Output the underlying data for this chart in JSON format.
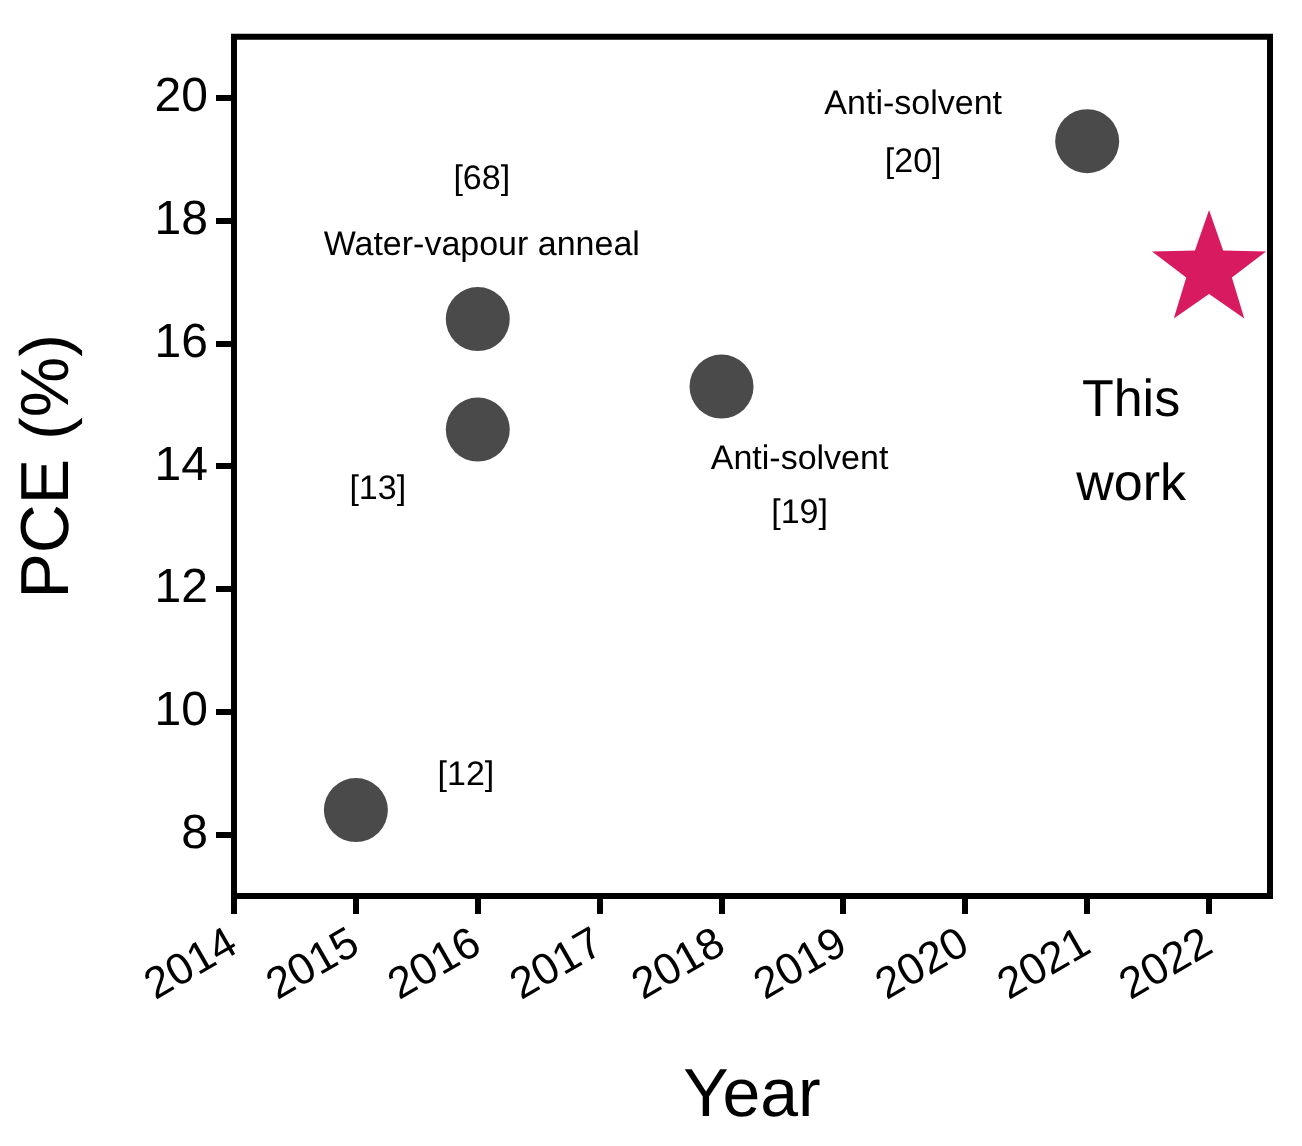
{
  "chart_data": {
    "type": "scatter",
    "xlabel": "Year",
    "ylabel": "PCE (%)",
    "xlim": [
      2014,
      2022.5
    ],
    "xticks": [
      2014,
      2015,
      2016,
      2017,
      2018,
      2019,
      2020,
      2021,
      2022
    ],
    "ylim": [
      7,
      21
    ],
    "yticks": [
      8,
      10,
      12,
      14,
      16,
      18,
      20
    ],
    "grid": false,
    "legend": false,
    "series": [
      {
        "x": [
          2015,
          2016,
          2016,
          2018,
          2021
        ],
        "values": [
          8.4,
          14.6,
          16.4,
          15.3,
          19.3
        ],
        "color": "#4a4a4a",
        "marker": "circle"
      },
      {
        "x": [
          2022
        ],
        "values": [
          17.2
        ],
        "color": "#d81b60",
        "marker": "star"
      }
    ],
    "annotations": [
      {
        "text": "[12]",
        "x": 2015,
        "y": 8.4
      },
      {
        "text": "[13]",
        "x": 2016,
        "y": 14.6
      },
      {
        "text": "[68]\nWater-vapour anneal",
        "x": 2016,
        "y": 16.4
      },
      {
        "text": "Anti-solvent\n[19]",
        "x": 2018,
        "y": 15.3
      },
      {
        "text": "Anti-solvent\n[20]",
        "x": 2021,
        "y": 19.3
      },
      {
        "text": "This\nwork",
        "x": 2022,
        "y": 17.2
      }
    ]
  }
}
